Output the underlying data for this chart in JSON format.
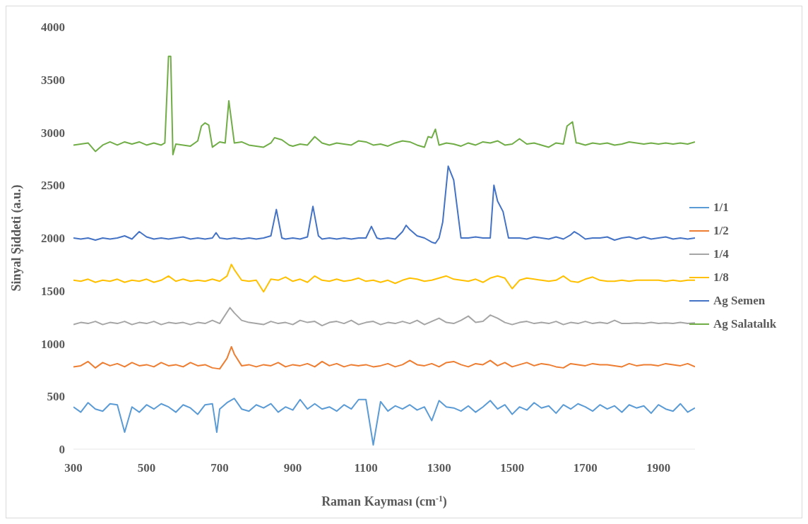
{
  "chart_data": {
    "type": "line",
    "xlabel": "Raman Kayması (cm$^{-1}$)",
    "ylabel": "Sinyal Şiddeti (a.u.)",
    "xlim": [
      300,
      2000
    ],
    "xticks": [
      300,
      500,
      700,
      900,
      1100,
      1300,
      1500,
      1700,
      1900
    ],
    "ylim": [
      0,
      4000
    ],
    "yticks": [
      0,
      500,
      1000,
      1500,
      2000,
      2500,
      3000,
      3500,
      4000
    ],
    "grid": false,
    "legend": "right",
    "marker": "none",
    "line_style": "solid",
    "series": [
      {
        "name": "1/1",
        "color": "#5b9bd5",
        "x": [
          300,
          320,
          340,
          360,
          380,
          400,
          420,
          440,
          460,
          480,
          500,
          520,
          540,
          560,
          580,
          600,
          620,
          640,
          660,
          680,
          692,
          700,
          720,
          740,
          760,
          780,
          800,
          820,
          840,
          860,
          880,
          900,
          920,
          940,
          960,
          980,
          1000,
          1020,
          1040,
          1060,
          1080,
          1100,
          1120,
          1140,
          1160,
          1180,
          1200,
          1220,
          1240,
          1260,
          1280,
          1300,
          1320,
          1340,
          1360,
          1380,
          1400,
          1420,
          1440,
          1460,
          1480,
          1500,
          1520,
          1540,
          1560,
          1580,
          1600,
          1620,
          1640,
          1660,
          1680,
          1700,
          1720,
          1740,
          1760,
          1780,
          1800,
          1820,
          1840,
          1860,
          1880,
          1900,
          1920,
          1940,
          1960,
          1980,
          2000
        ],
        "values": [
          400,
          350,
          440,
          380,
          360,
          430,
          420,
          160,
          400,
          350,
          420,
          380,
          430,
          400,
          350,
          420,
          390,
          330,
          420,
          430,
          160,
          380,
          440,
          480,
          380,
          360,
          420,
          390,
          430,
          350,
          400,
          370,
          470,
          380,
          430,
          380,
          400,
          360,
          420,
          380,
          470,
          470,
          40,
          450,
          360,
          410,
          380,
          420,
          370,
          400,
          270,
          460,
          400,
          390,
          360,
          410,
          350,
          400,
          460,
          380,
          420,
          330,
          400,
          370,
          440,
          390,
          410,
          340,
          420,
          380,
          430,
          400,
          360,
          420,
          380,
          410,
          350,
          420,
          390,
          410,
          340,
          420,
          380,
          360,
          430,
          350,
          390
        ]
      },
      {
        "name": "1/2",
        "color": "#ed7d31",
        "x": [
          300,
          320,
          340,
          360,
          380,
          400,
          420,
          440,
          460,
          480,
          500,
          520,
          540,
          560,
          580,
          600,
          620,
          640,
          660,
          680,
          700,
          720,
          732,
          740,
          760,
          780,
          800,
          820,
          840,
          860,
          880,
          900,
          920,
          940,
          960,
          980,
          1000,
          1020,
          1040,
          1060,
          1080,
          1100,
          1120,
          1140,
          1160,
          1180,
          1200,
          1220,
          1240,
          1260,
          1280,
          1300,
          1320,
          1340,
          1360,
          1380,
          1400,
          1420,
          1440,
          1460,
          1480,
          1500,
          1520,
          1540,
          1560,
          1580,
          1600,
          1620,
          1640,
          1660,
          1680,
          1700,
          1720,
          1740,
          1760,
          1780,
          1800,
          1820,
          1840,
          1860,
          1880,
          1900,
          1920,
          1940,
          1960,
          1980,
          2000
        ],
        "values": [
          780,
          790,
          830,
          770,
          820,
          790,
          810,
          780,
          820,
          790,
          800,
          780,
          820,
          790,
          800,
          780,
          820,
          790,
          800,
          770,
          760,
          860,
          970,
          900,
          790,
          800,
          780,
          800,
          790,
          820,
          780,
          800,
          790,
          810,
          780,
          830,
          790,
          810,
          780,
          800,
          790,
          800,
          780,
          790,
          810,
          780,
          800,
          840,
          800,
          790,
          810,
          780,
          820,
          830,
          800,
          780,
          810,
          800,
          840,
          790,
          820,
          780,
          800,
          820,
          790,
          810,
          800,
          780,
          770,
          810,
          800,
          790,
          810,
          800,
          800,
          790,
          780,
          810,
          790,
          800,
          800,
          790,
          810,
          800,
          790,
          810,
          780
        ]
      },
      {
        "name": "1/4",
        "color": "#a5a5a5",
        "x": [
          300,
          320,
          340,
          360,
          380,
          400,
          420,
          440,
          460,
          480,
          500,
          520,
          540,
          560,
          580,
          600,
          620,
          640,
          660,
          680,
          700,
          728,
          740,
          760,
          780,
          800,
          820,
          840,
          860,
          880,
          900,
          920,
          940,
          960,
          980,
          1000,
          1020,
          1040,
          1060,
          1080,
          1100,
          1120,
          1140,
          1160,
          1180,
          1200,
          1220,
          1240,
          1260,
          1280,
          1300,
          1320,
          1340,
          1360,
          1380,
          1400,
          1420,
          1440,
          1460,
          1480,
          1500,
          1520,
          1540,
          1560,
          1580,
          1600,
          1620,
          1640,
          1660,
          1680,
          1700,
          1720,
          1740,
          1760,
          1780,
          1800,
          1820,
          1840,
          1860,
          1880,
          1900,
          1920,
          1940,
          1960,
          1980,
          2000
        ],
        "values": [
          1180,
          1200,
          1190,
          1210,
          1180,
          1200,
          1190,
          1210,
          1180,
          1200,
          1190,
          1210,
          1180,
          1200,
          1190,
          1200,
          1180,
          1200,
          1190,
          1220,
          1190,
          1340,
          1290,
          1220,
          1200,
          1190,
          1180,
          1210,
          1190,
          1200,
          1180,
          1220,
          1200,
          1210,
          1170,
          1200,
          1210,
          1190,
          1220,
          1180,
          1200,
          1210,
          1180,
          1200,
          1190,
          1210,
          1190,
          1220,
          1180,
          1210,
          1240,
          1200,
          1190,
          1220,
          1260,
          1200,
          1210,
          1270,
          1240,
          1200,
          1180,
          1200,
          1210,
          1190,
          1200,
          1190,
          1210,
          1180,
          1200,
          1190,
          1210,
          1190,
          1200,
          1190,
          1220,
          1190,
          1190,
          1195,
          1190,
          1200,
          1190,
          1195,
          1190,
          1200,
          1190,
          1195
        ]
      },
      {
        "name": "1/8",
        "color": "#ffc000",
        "x": [
          300,
          320,
          340,
          360,
          380,
          400,
          420,
          440,
          460,
          480,
          500,
          520,
          540,
          560,
          580,
          600,
          620,
          640,
          660,
          680,
          700,
          720,
          732,
          740,
          760,
          780,
          800,
          820,
          840,
          860,
          880,
          900,
          920,
          940,
          960,
          980,
          1000,
          1020,
          1040,
          1060,
          1080,
          1100,
          1120,
          1140,
          1160,
          1180,
          1200,
          1220,
          1240,
          1260,
          1280,
          1300,
          1320,
          1340,
          1360,
          1380,
          1400,
          1420,
          1440,
          1460,
          1480,
          1500,
          1520,
          1540,
          1560,
          1580,
          1600,
          1620,
          1640,
          1660,
          1680,
          1700,
          1720,
          1740,
          1760,
          1780,
          1800,
          1820,
          1840,
          1860,
          1880,
          1900,
          1920,
          1940,
          1960,
          1980,
          2000
        ],
        "values": [
          1600,
          1590,
          1610,
          1580,
          1600,
          1590,
          1610,
          1580,
          1600,
          1590,
          1610,
          1580,
          1600,
          1640,
          1590,
          1610,
          1590,
          1600,
          1590,
          1610,
          1590,
          1640,
          1750,
          1700,
          1600,
          1590,
          1600,
          1490,
          1610,
          1600,
          1630,
          1590,
          1610,
          1580,
          1640,
          1600,
          1590,
          1610,
          1590,
          1600,
          1620,
          1590,
          1600,
          1580,
          1600,
          1570,
          1600,
          1620,
          1610,
          1590,
          1600,
          1620,
          1640,
          1610,
          1600,
          1590,
          1610,
          1580,
          1620,
          1640,
          1620,
          1520,
          1600,
          1620,
          1610,
          1600,
          1590,
          1600,
          1640,
          1590,
          1580,
          1610,
          1630,
          1600,
          1590,
          1590,
          1600,
          1590,
          1600,
          1600,
          1600,
          1600,
          1590,
          1600,
          1590,
          1600,
          1600
        ]
      },
      {
        "name": "Ag Semen",
        "color": "#4472c4",
        "x": [
          300,
          320,
          340,
          360,
          380,
          400,
          420,
          440,
          460,
          480,
          500,
          520,
          540,
          560,
          580,
          600,
          620,
          640,
          660,
          680,
          690,
          700,
          720,
          740,
          760,
          780,
          800,
          820,
          840,
          855,
          870,
          880,
          900,
          920,
          940,
          955,
          970,
          980,
          1000,
          1020,
          1040,
          1060,
          1080,
          1100,
          1115,
          1130,
          1140,
          1160,
          1180,
          1200,
          1210,
          1220,
          1240,
          1260,
          1280,
          1290,
          1300,
          1310,
          1325,
          1340,
          1360,
          1380,
          1400,
          1420,
          1440,
          1450,
          1460,
          1475,
          1490,
          1500,
          1520,
          1540,
          1560,
          1580,
          1600,
          1620,
          1640,
          1660,
          1670,
          1680,
          1700,
          1720,
          1740,
          1760,
          1780,
          1800,
          1820,
          1840,
          1860,
          1880,
          1900,
          1920,
          1940,
          1960,
          1980,
          2000
        ],
        "values": [
          2000,
          1990,
          2000,
          1980,
          2000,
          1990,
          2000,
          2020,
          1990,
          2060,
          2010,
          1990,
          2000,
          1990,
          2000,
          2010,
          1990,
          2000,
          1990,
          2000,
          2050,
          2000,
          1990,
          2000,
          1990,
          2000,
          1990,
          2000,
          2020,
          2270,
          2000,
          1990,
          2000,
          1990,
          2010,
          2300,
          2020,
          1990,
          2000,
          1990,
          2000,
          1990,
          2000,
          2000,
          2110,
          2000,
          1990,
          2000,
          1990,
          2060,
          2120,
          2080,
          2020,
          2000,
          1960,
          1950,
          2000,
          2150,
          2680,
          2550,
          2000,
          2000,
          2010,
          2000,
          2000,
          2500,
          2350,
          2250,
          2000,
          2000,
          2000,
          1990,
          2010,
          2000,
          1990,
          2010,
          1990,
          2030,
          2060,
          2040,
          1990,
          2000,
          2000,
          2010,
          1980,
          2000,
          2010,
          1990,
          2010,
          1990,
          2000,
          2010,
          1990,
          2000,
          1990,
          2000
        ]
      },
      {
        "name": "Ag Salatalık",
        "color": "#70ad47",
        "x": [
          300,
          320,
          340,
          360,
          380,
          400,
          420,
          440,
          460,
          480,
          500,
          520,
          540,
          550,
          560,
          566,
          572,
          580,
          600,
          620,
          640,
          650,
          660,
          670,
          680,
          700,
          715,
          725,
          740,
          760,
          780,
          800,
          820,
          840,
          850,
          870,
          890,
          900,
          920,
          940,
          960,
          980,
          1000,
          1020,
          1040,
          1060,
          1080,
          1100,
          1120,
          1140,
          1160,
          1180,
          1200,
          1220,
          1240,
          1260,
          1270,
          1280,
          1290,
          1300,
          1320,
          1340,
          1360,
          1380,
          1400,
          1420,
          1440,
          1460,
          1480,
          1500,
          1520,
          1540,
          1560,
          1580,
          1600,
          1620,
          1640,
          1650,
          1665,
          1675,
          1680,
          1700,
          1720,
          1740,
          1760,
          1780,
          1800,
          1820,
          1840,
          1860,
          1880,
          1900,
          1920,
          1940,
          1960,
          1980,
          2000
        ],
        "values": [
          2880,
          2890,
          2900,
          2820,
          2880,
          2910,
          2880,
          2910,
          2890,
          2910,
          2880,
          2900,
          2880,
          2900,
          3720,
          3720,
          2790,
          2890,
          2880,
          2870,
          2920,
          3060,
          3090,
          3070,
          2860,
          2910,
          2900,
          3300,
          2900,
          2910,
          2880,
          2870,
          2860,
          2900,
          2950,
          2930,
          2880,
          2870,
          2890,
          2880,
          2960,
          2900,
          2880,
          2900,
          2890,
          2880,
          2920,
          2910,
          2880,
          2890,
          2870,
          2900,
          2920,
          2910,
          2880,
          2860,
          2960,
          2950,
          3030,
          2880,
          2900,
          2890,
          2870,
          2900,
          2880,
          2910,
          2900,
          2920,
          2880,
          2890,
          2940,
          2890,
          2900,
          2880,
          2860,
          2900,
          2890,
          3060,
          3100,
          2900,
          2900,
          2880,
          2900,
          2890,
          2900,
          2880,
          2890,
          2910,
          2900,
          2890,
          2900,
          2890,
          2900,
          2890,
          2900,
          2890,
          2910
        ]
      }
    ]
  }
}
